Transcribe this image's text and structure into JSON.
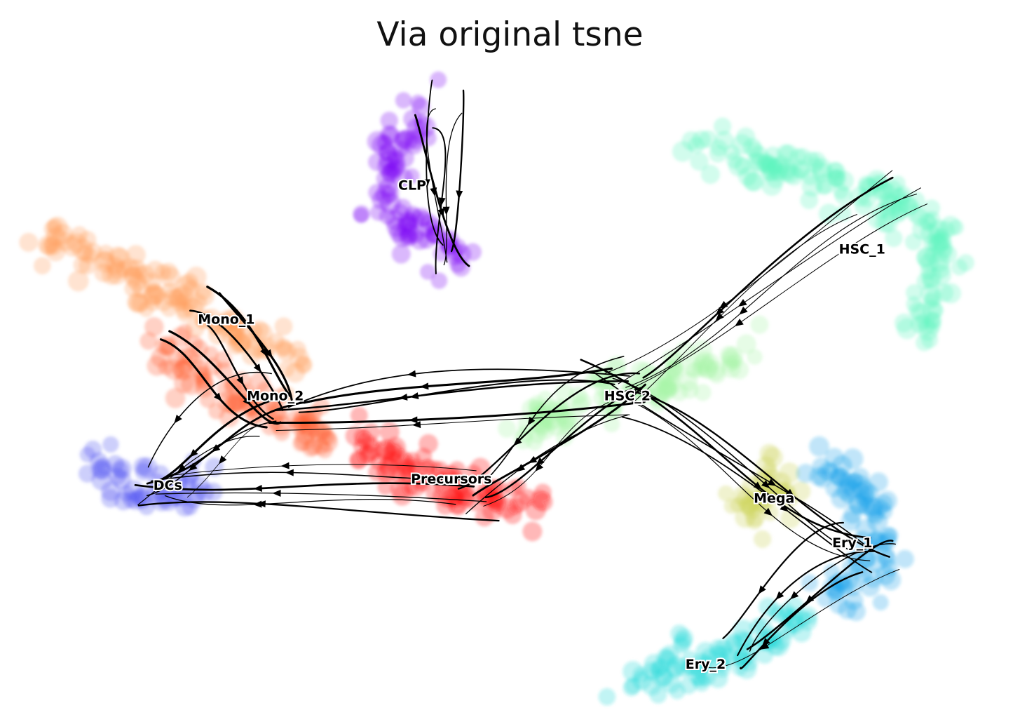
{
  "chart_data": {
    "type": "scatter",
    "title": "Via original tsne",
    "xlabel": "",
    "ylabel": "",
    "axes_visible": false,
    "grid": false,
    "legend": "none",
    "overlay": "velocity streamlines with arrowheads (black)",
    "xlim": [
      0,
      100
    ],
    "ylim": [
      0,
      100
    ],
    "clusters": [
      {
        "label": "CLP",
        "color": "#7a00f5",
        "center": [
          40,
          81
        ],
        "path": [
          [
            41,
            93
          ],
          [
            38,
            86
          ],
          [
            37,
            79
          ],
          [
            41,
            73
          ],
          [
            45,
            69
          ]
        ]
      },
      {
        "label": "HSC_1",
        "color": "#5ff5c0",
        "center": [
          86,
          71
        ],
        "path": [
          [
            69,
            88
          ],
          [
            80,
            83
          ],
          [
            90,
            79
          ],
          [
            94,
            71
          ],
          [
            92,
            58
          ]
        ]
      },
      {
        "label": "HSC_2",
        "color": "#a6f5a6",
        "center": [
          62,
          48
        ],
        "path": [
          [
            75,
            54
          ],
          [
            62,
            49
          ],
          [
            50,
            43
          ]
        ]
      },
      {
        "label": "Mono_1",
        "color": "#ff9a55",
        "center": [
          21,
          60
        ],
        "path": [
          [
            3,
            73
          ],
          [
            12,
            66
          ],
          [
            20,
            60
          ],
          [
            28,
            53
          ]
        ]
      },
      {
        "label": "Mono_2",
        "color": "#ff5a2a",
        "center": [
          26,
          48
        ],
        "path": [
          [
            14,
            56
          ],
          [
            20,
            49
          ],
          [
            27,
            45
          ],
          [
            32,
            42
          ]
        ]
      },
      {
        "label": "Precursors",
        "color": "#ff1010",
        "center": [
          44,
          35
        ],
        "path": [
          [
            33,
            42
          ],
          [
            40,
            36
          ],
          [
            47,
            32
          ],
          [
            53,
            30
          ]
        ]
      },
      {
        "label": "DCs",
        "color": "#4a4ef0",
        "center": [
          15,
          34
        ],
        "path": [
          [
            8,
            37
          ],
          [
            13,
            33
          ],
          [
            19,
            35
          ]
        ]
      },
      {
        "label": "Mega",
        "color": "#c9d050",
        "center": [
          77,
          32
        ],
        "path": [
          [
            73,
            30
          ],
          [
            78,
            33
          ],
          [
            76,
            38
          ]
        ]
      },
      {
        "label": "Ery_1",
        "color": "#1aa0e8",
        "center": [
          85,
          25
        ],
        "path": [
          [
            81,
            37
          ],
          [
            87,
            32
          ],
          [
            88,
            23
          ],
          [
            82,
            16
          ]
        ]
      },
      {
        "label": "Ery_2",
        "color": "#22d8d8",
        "center": [
          70,
          6
        ],
        "path": [
          [
            80,
            14
          ],
          [
            72,
            7
          ],
          [
            62,
            3
          ]
        ]
      }
    ]
  }
}
